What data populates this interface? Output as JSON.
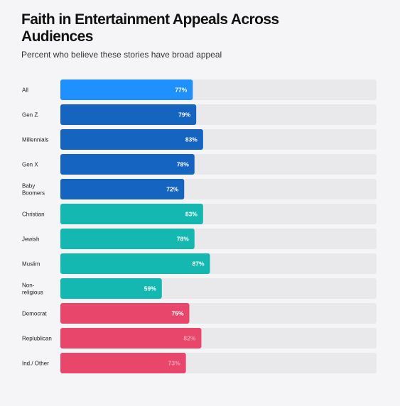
{
  "title": "Faith in Entertainment Appeals Across Audiences",
  "subtitle": "Percent who believe these stories have broad appeal",
  "colors": {
    "all": "#1e90ff",
    "generation": "#1565c0",
    "religion": "#14b8b0",
    "politics": "#e8466b",
    "track": "#e9e9eb",
    "label_white": "#ffffff",
    "label_pink": "#f2a0b3"
  },
  "chart_data": {
    "type": "bar",
    "orientation": "horizontal",
    "xlim": [
      0,
      100
    ],
    "categories": [
      {
        "label": [
          "All"
        ],
        "value": 77,
        "value_label": "77%",
        "group": "all",
        "label_color": "label_white"
      },
      {
        "label": [
          "Gen Z"
        ],
        "value": 79,
        "value_label": "79%",
        "group": "generation",
        "label_color": "label_white"
      },
      {
        "label": [
          "Millennials"
        ],
        "value": 83,
        "value_label": "83%",
        "group": "generation",
        "label_color": "label_white"
      },
      {
        "label": [
          "Gen X"
        ],
        "value": 78,
        "value_label": "78%",
        "group": "generation",
        "label_color": "label_white"
      },
      {
        "label": [
          "Baby",
          "Boomers"
        ],
        "value": 72,
        "value_label": "72%",
        "group": "generation",
        "label_color": "label_white"
      },
      {
        "label": [
          "Christian"
        ],
        "value": 83,
        "value_label": "83%",
        "group": "religion",
        "label_color": "label_white"
      },
      {
        "label": [
          "Jewish"
        ],
        "value": 78,
        "value_label": "78%",
        "group": "religion",
        "label_color": "label_white"
      },
      {
        "label": [
          "Muslim"
        ],
        "value": 87,
        "value_label": "87%",
        "group": "religion",
        "label_color": "label_white"
      },
      {
        "label": [
          "Non-",
          "religious"
        ],
        "value": 59,
        "value_label": "59%",
        "group": "religion",
        "label_color": "label_white"
      },
      {
        "label": [
          "Democrat"
        ],
        "value": 75,
        "value_label": "75%",
        "group": "politics",
        "label_color": "label_white"
      },
      {
        "label": [
          "Replublican"
        ],
        "value": 82,
        "value_label": "82%",
        "group": "politics",
        "label_color": "label_pink"
      },
      {
        "label": [
          "Ind./ Other"
        ],
        "value": 73,
        "value_label": "73%",
        "group": "politics",
        "label_color": "label_pink"
      }
    ]
  }
}
